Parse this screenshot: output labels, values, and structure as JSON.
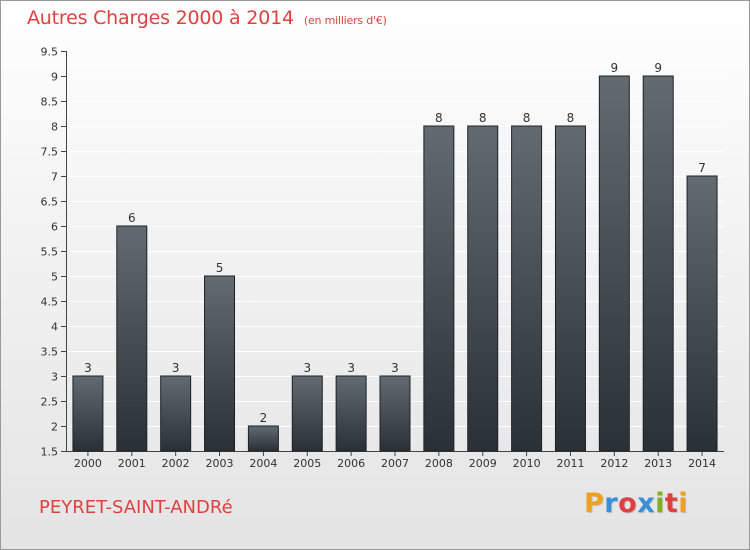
{
  "title": "Autres Charges 2000 à 2014",
  "unit_note": "(en milliers d'€)",
  "location": "PEYRET-SAINT-ANDRé",
  "logo": {
    "text": "Proxiti",
    "letters": [
      "P",
      "r",
      "o",
      "x",
      "i",
      "t",
      "i"
    ],
    "colors": [
      "#f0a020",
      "#3a8fd8",
      "#e04040",
      "#3a8fd8",
      "#80b020",
      "#e04040",
      "#f0a020"
    ]
  },
  "colors": {
    "accent": "#e04040",
    "bar_top": "#626a72",
    "bar_bottom": "#2a3038"
  },
  "chart_data": {
    "type": "bar",
    "title": "Autres Charges 2000 à 2014",
    "subtitle": "(en milliers d'€)",
    "xlabel": "",
    "ylabel": "",
    "categories": [
      "2000",
      "2001",
      "2002",
      "2003",
      "2004",
      "2005",
      "2006",
      "2007",
      "2008",
      "2009",
      "2010",
      "2011",
      "2012",
      "2013",
      "2014"
    ],
    "values": [
      3,
      6,
      3,
      5,
      2,
      3,
      3,
      3,
      8,
      8,
      8,
      8,
      9,
      9,
      7
    ],
    "ylim": [
      1.5,
      9.5
    ],
    "yticks": [
      "1.5",
      "2",
      "2.5",
      "3",
      "3.5",
      "4",
      "4.5",
      "5",
      "5.5",
      "6",
      "6.5",
      "7",
      "7.5",
      "8",
      "8.5",
      "9",
      "9.5"
    ],
    "grid": true,
    "data_labels": true
  }
}
